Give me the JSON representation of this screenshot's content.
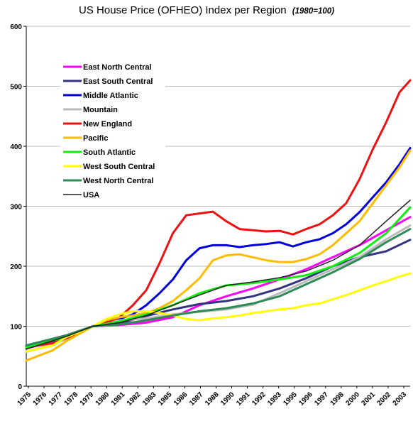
{
  "chart_data": {
    "type": "line",
    "title": "US House Price (OFHEO) Index per Region",
    "subtitle": "(1980=100)",
    "xlabel": "",
    "ylabel": "",
    "ylim": [
      0,
      600
    ],
    "xlim": [
      1975,
      2003.8
    ],
    "y_ticks": [
      0,
      100,
      200,
      300,
      400,
      500,
      600
    ],
    "x_tick_labels": [
      "1975",
      "1976",
      "1977",
      "1978",
      "1979",
      "1980",
      "1981",
      "1982",
      "1983",
      "1985",
      "1986",
      "1987",
      "1988",
      "1990",
      "1991",
      "1992",
      "1993",
      "1995",
      "1996",
      "1997",
      "1998",
      "2000",
      "2001",
      "2002",
      "2003"
    ],
    "grid": "horizontal",
    "legend_position": "top-left",
    "series": [
      {
        "name": "East North Central",
        "color": "#ff00ff",
        "x": [
          1975,
          1978,
          1980,
          1982,
          1984,
          1986,
          1988,
          1990,
          1992,
          1994,
          1996,
          1998,
          2000,
          2002,
          2003.8
        ],
        "y": [
          63,
          80,
          100,
          102,
          106,
          115,
          135,
          150,
          163,
          178,
          195,
          215,
          235,
          260,
          282
        ]
      },
      {
        "name": "East South Central",
        "color": "#333380",
        "x": [
          1975,
          1978,
          1980,
          1982,
          1984,
          1986,
          1988,
          1990,
          1992,
          1994,
          1996,
          1998,
          2000,
          2002,
          2003.8
        ],
        "y": [
          65,
          82,
          100,
          105,
          117,
          128,
          137,
          142,
          150,
          163,
          180,
          200,
          215,
          225,
          244
        ]
      },
      {
        "name": "Middle Atlantic",
        "color": "#0000dd",
        "x": [
          1975,
          1977,
          1978,
          1980,
          1981,
          1982,
          1983,
          1984,
          1985,
          1986,
          1987,
          1988,
          1989,
          1990,
          1991,
          1992,
          1993,
          1994,
          1995,
          1996,
          1997,
          1998,
          1999,
          2000,
          2001,
          2002,
          2003,
          2003.8
        ],
        "y": [
          68,
          75,
          82,
          100,
          107,
          112,
          120,
          135,
          155,
          178,
          210,
          230,
          235,
          235,
          232,
          235,
          237,
          240,
          233,
          240,
          245,
          255,
          270,
          290,
          315,
          340,
          370,
          397
        ]
      },
      {
        "name": "Mountain",
        "color": "#bbbbbb",
        "x": [
          1975,
          1978,
          1980,
          1982,
          1984,
          1986,
          1988,
          1990,
          1992,
          1994,
          1996,
          1998,
          2000,
          2002,
          2003.8
        ],
        "y": [
          57,
          78,
          100,
          110,
          113,
          120,
          124,
          128,
          136,
          155,
          175,
          195,
          215,
          245,
          268
        ]
      },
      {
        "name": "New England",
        "color": "#ee1111",
        "x": [
          1975,
          1977,
          1978,
          1980,
          1981,
          1982,
          1983,
          1984,
          1985,
          1986,
          1987,
          1988,
          1989,
          1990,
          1991,
          1992,
          1993,
          1994,
          1995,
          1996,
          1997,
          1998,
          1999,
          2000,
          2001,
          2002,
          2003,
          2003.8
        ],
        "y": [
          65,
          72,
          80,
          100,
          106,
          115,
          135,
          160,
          205,
          255,
          285,
          288,
          291,
          275,
          262,
          260,
          258,
          259,
          253,
          262,
          270,
          285,
          305,
          345,
          395,
          440,
          490,
          510
        ]
      },
      {
        "name": "Pacific",
        "color": "#ffbb00",
        "x": [
          1975,
          1977,
          1978,
          1980,
          1981,
          1982,
          1983,
          1984,
          1985,
          1986,
          1987,
          1988,
          1989,
          1990,
          1991,
          1992,
          1993,
          1994,
          1995,
          1996,
          1997,
          1998,
          1999,
          2000,
          2001,
          2002,
          2003,
          2003.8
        ],
        "y": [
          43,
          60,
          75,
          100,
          110,
          115,
          118,
          122,
          130,
          142,
          160,
          180,
          210,
          218,
          220,
          215,
          210,
          207,
          207,
          212,
          220,
          235,
          255,
          275,
          305,
          335,
          365,
          393
        ]
      },
      {
        "name": "South Atlantic",
        "color": "#11ee11",
        "x": [
          1975,
          1978,
          1980,
          1982,
          1984,
          1986,
          1988,
          1990,
          1992,
          1994,
          1996,
          1998,
          2000,
          2002,
          2003.8
        ],
        "y": [
          65,
          82,
          100,
          108,
          120,
          135,
          155,
          168,
          172,
          178,
          185,
          200,
          222,
          255,
          298
        ]
      },
      {
        "name": "West South Central",
        "color": "#ffff00",
        "x": [
          1975,
          1977,
          1978,
          1980,
          1981,
          1982,
          1983,
          1984,
          1985,
          1986,
          1987,
          1988,
          1989,
          1990,
          1991,
          1992,
          1993,
          1994,
          1995,
          1996,
          1997,
          1998,
          1999,
          2000,
          2001,
          2002,
          2003,
          2003.8
        ],
        "y": [
          58,
          68,
          82,
          100,
          112,
          120,
          125,
          125,
          122,
          118,
          112,
          110,
          113,
          115,
          118,
          122,
          125,
          128,
          130,
          135,
          138,
          145,
          152,
          160,
          168,
          175,
          183,
          188
        ]
      },
      {
        "name": "West North Central",
        "color": "#2e8b57",
        "x": [
          1975,
          1978,
          1980,
          1982,
          1984,
          1986,
          1988,
          1990,
          1992,
          1994,
          1996,
          1998,
          2000,
          2002,
          2003.8
        ],
        "y": [
          68,
          85,
          100,
          103,
          110,
          118,
          125,
          130,
          138,
          150,
          170,
          190,
          212,
          240,
          262
        ]
      },
      {
        "name": "USA",
        "color": "#222222",
        "x": [
          1975,
          1978,
          1980,
          1982,
          1984,
          1986,
          1988,
          1990,
          1992,
          1994,
          1996,
          1998,
          2000,
          2002,
          2003.8
        ],
        "y": [
          62,
          83,
          100,
          106,
          118,
          135,
          152,
          168,
          174,
          181,
          192,
          210,
          235,
          275,
          310
        ]
      }
    ]
  }
}
